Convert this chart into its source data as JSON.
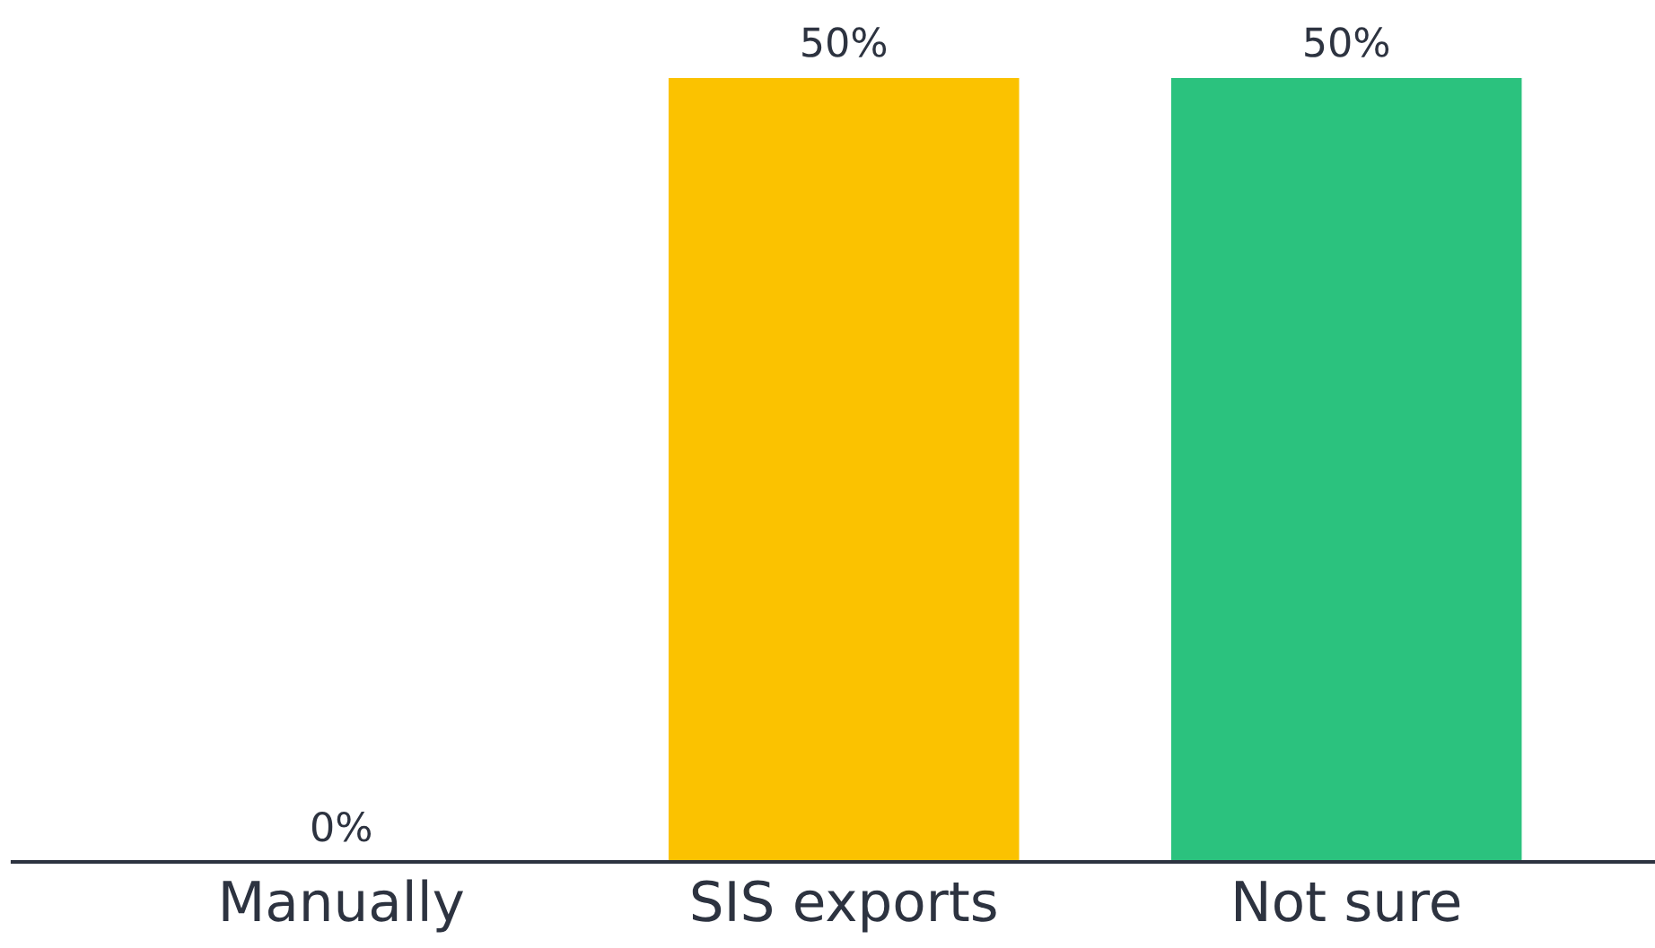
{
  "chart_data": {
    "type": "bar",
    "categories": [
      "Manually",
      "SIS exports",
      "Not sure"
    ],
    "values": [
      0,
      50,
      50
    ],
    "colors": [
      null,
      "#fbc200",
      "#2bc27e"
    ],
    "value_labels": [
      "0%",
      "50%",
      "50%"
    ],
    "grid": false,
    "legend": false
  }
}
